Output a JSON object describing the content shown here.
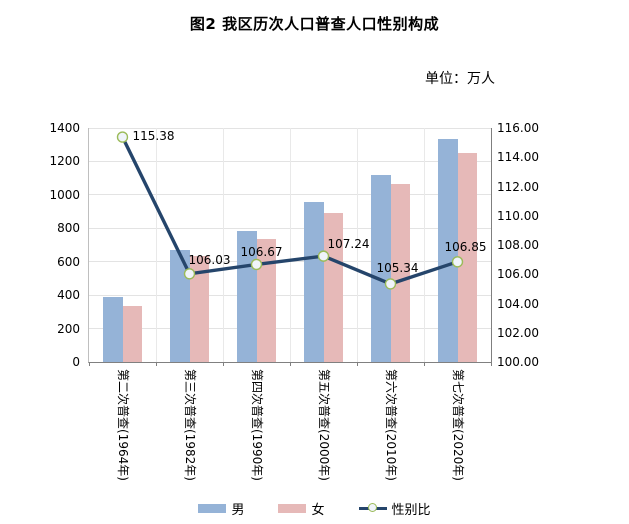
{
  "title": "图2 我区历次人口普查人口性别构成",
  "unit_label": "单位：万人",
  "chart_data": {
    "type": "bar",
    "subtype": "bar-line-combo",
    "categories": [
      "第二次普查(1964年)",
      "第三次普查(1982年)",
      "第四次普查(1990年)",
      "第五次普查(2000年)",
      "第六次普查(2010年)",
      "第七次普查(2020年)"
    ],
    "series": [
      {
        "name": "男",
        "kind": "bar",
        "axis": "left",
        "color": "#95B3D7",
        "values": [
          389,
          672,
          782,
          955,
          1119,
          1336
        ]
      },
      {
        "name": "女",
        "kind": "bar",
        "axis": "left",
        "color": "#E6B9B8",
        "values": [
          337,
          635,
          733,
          891,
          1063,
          1250
        ]
      },
      {
        "name": "性别比",
        "kind": "line",
        "axis": "right",
        "color": "#25456B",
        "marker_fill": "#F0F4FA",
        "marker_border": "#9BBB59",
        "values": [
          115.38,
          106.03,
          106.67,
          107.24,
          105.34,
          106.85
        ],
        "point_labels": [
          "115.38",
          "106.03",
          "106.67",
          "107.24",
          "105.34",
          "106.85"
        ]
      }
    ],
    "left_axis": {
      "min": 0,
      "max": 1400,
      "step": 200,
      "ticks": [
        "1400",
        "1200",
        "1000",
        "800",
        "600",
        "400",
        "200",
        "0"
      ]
    },
    "right_axis": {
      "min": 100,
      "max": 116,
      "step": 2,
      "ticks": [
        "116.00",
        "114.00",
        "112.00",
        "110.00",
        "108.00",
        "106.00",
        "104.00",
        "102.00",
        "100.00"
      ]
    },
    "grid": true,
    "legend_position": "bottom"
  },
  "legend": {
    "male_label": "男",
    "female_label": "女",
    "ratio_label": "性别比"
  }
}
